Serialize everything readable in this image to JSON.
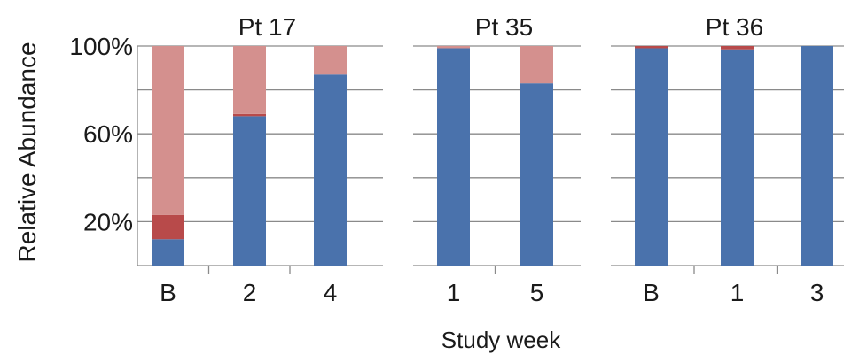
{
  "chart_data": {
    "type": "bar",
    "stacked": true,
    "ylabel": "Relative Abundance",
    "xlabel": "Study week",
    "ylim": [
      0,
      100
    ],
    "ytick_labels": [
      "100%",
      "60%",
      "20%"
    ],
    "grid": true,
    "colors": {
      "blue": "#4a72ac",
      "dark_red": "#b84a4a",
      "pink": "#d4908e"
    },
    "panels": [
      {
        "title": "Pt 17",
        "categories": [
          "B",
          "2",
          "4"
        ],
        "series": [
          {
            "color": "blue",
            "values": [
              12,
              68,
              87
            ]
          },
          {
            "color": "dark_red",
            "values": [
              11,
              1,
              0
            ]
          },
          {
            "color": "pink",
            "values": [
              77,
              31,
              13
            ]
          }
        ]
      },
      {
        "title": "Pt 35",
        "categories": [
          "1",
          "5"
        ],
        "series": [
          {
            "color": "blue",
            "values": [
              99,
              83
            ]
          },
          {
            "color": "dark_red",
            "values": [
              0,
              0
            ]
          },
          {
            "color": "pink",
            "values": [
              1,
              17
            ]
          }
        ]
      },
      {
        "title": "Pt 36",
        "categories": [
          "B",
          "1",
          "3"
        ],
        "series": [
          {
            "color": "blue",
            "values": [
              99,
              98.5,
              100
            ]
          },
          {
            "color": "dark_red",
            "values": [
              1,
              1.5,
              0
            ]
          },
          {
            "color": "pink",
            "values": [
              0,
              0,
              0
            ]
          }
        ]
      }
    ]
  }
}
